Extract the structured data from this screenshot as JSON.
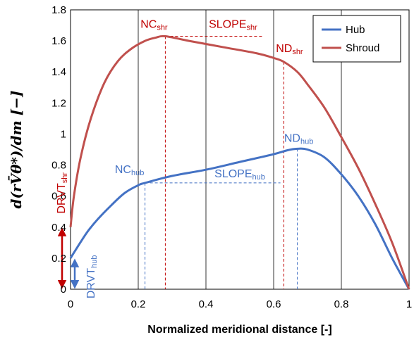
{
  "chart_data": {
    "type": "line",
    "xlabel": "Normalized meridional distance [-]",
    "ylabel": "d(rV̄θ*)/dm [−]",
    "xlim": [
      0,
      1
    ],
    "ylim": [
      0,
      1.8
    ],
    "xticks": [
      0,
      0.2,
      0.4,
      0.6,
      0.8,
      1
    ],
    "xtick_labels": [
      "0",
      "0.2",
      "0.4",
      "0.6",
      "0.8",
      "1"
    ],
    "yticks": [
      0,
      0.2,
      0.4,
      0.6,
      0.8,
      1,
      1.2,
      1.4,
      1.6,
      1.8
    ],
    "ytick_labels": [
      "0",
      "0.2",
      "0.4",
      "0.6",
      "0.8",
      "1",
      "1.2",
      "1.4",
      "1.6",
      "1.8"
    ],
    "grid": "vertical",
    "legend_position": "top-right",
    "series": [
      {
        "name": "Hub",
        "color": "#4472c4",
        "x": [
          0,
          0.02,
          0.05,
          0.08,
          0.12,
          0.16,
          0.2,
          0.22,
          0.3,
          0.4,
          0.5,
          0.6,
          0.64,
          0.67,
          0.7,
          0.75,
          0.8,
          0.85,
          0.9,
          0.95,
          1.0
        ],
        "y": [
          0.2,
          0.27,
          0.37,
          0.45,
          0.54,
          0.62,
          0.67,
          0.685,
          0.73,
          0.77,
          0.82,
          0.87,
          0.895,
          0.905,
          0.9,
          0.85,
          0.74,
          0.6,
          0.42,
          0.2,
          0.0
        ]
      },
      {
        "name": "Shroud",
        "color": "#c0504d",
        "x": [
          0,
          0.01,
          0.03,
          0.06,
          0.1,
          0.14,
          0.18,
          0.22,
          0.25,
          0.28,
          0.35,
          0.45,
          0.55,
          0.6,
          0.63,
          0.67,
          0.7,
          0.75,
          0.8,
          0.85,
          0.9,
          0.95,
          1.0
        ],
        "y": [
          0.4,
          0.6,
          0.85,
          1.1,
          1.33,
          1.47,
          1.55,
          1.6,
          1.62,
          1.63,
          1.6,
          1.56,
          1.52,
          1.49,
          1.465,
          1.4,
          1.32,
          1.17,
          0.98,
          0.78,
          0.55,
          0.3,
          0.0
        ]
      }
    ],
    "annotations": [
      {
        "text": "NC",
        "sub": "shr",
        "color": "#c00000",
        "x": 0.28,
        "y": 1.63
      },
      {
        "text": "SLOPE",
        "sub": "shr",
        "color": "#c00000"
      },
      {
        "text": "ND",
        "sub": "shr",
        "color": "#c00000",
        "x": 0.63,
        "y": 1.465
      },
      {
        "text": "DRVT",
        "sub": "shr",
        "color": "#c00000"
      },
      {
        "text": "NC",
        "sub": "hub",
        "color": "#4472c4",
        "x": 0.22,
        "y": 0.685
      },
      {
        "text": "SLOPE",
        "sub": "hub",
        "color": "#4472c4"
      },
      {
        "text": "ND",
        "sub": "hub",
        "color": "#4472c4",
        "x": 0.67,
        "y": 0.905
      },
      {
        "text": "DRVT",
        "sub": "hub",
        "color": "#4472c4"
      }
    ],
    "guides": {
      "shr": {
        "nc_x": 0.28,
        "nd_x": 0.63,
        "slope_y": 1.63,
        "slope_x_end": 0.57,
        "drvt_y": 0.4,
        "color": "#c00000"
      },
      "hub": {
        "nc_x": 0.22,
        "nd_x": 0.67,
        "slope_y": 0.685,
        "slope_x_end": 0.62,
        "drvt_y": 0.2,
        "color": "#4472c4"
      }
    }
  }
}
